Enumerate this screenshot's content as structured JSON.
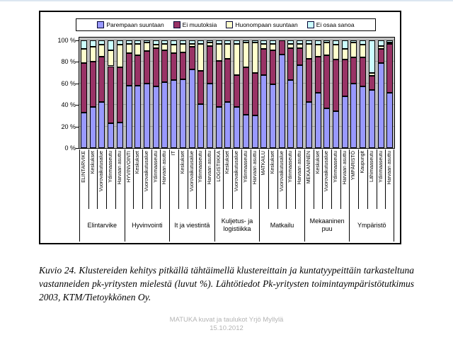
{
  "slide": {
    "caption": "Kuvio 24. Klustereiden kehitys pitkällä tähtäimellä klustereittain ja kuntatyypeittäin tarkasteltuna vastanneiden pk-yritysten mielestä (luvut %). Lähtötiedot Pk-yritysten toimintaympäristötutkimus 2003, KTM/Tietoykkönen Oy.",
    "footer_line1": "MATUKA kuvat ja taulukot Yrjö Myllylä",
    "footer_line2": "15.10.2012"
  },
  "chart_data": {
    "type": "bar",
    "stacked_percent": true,
    "legend_position": "top",
    "grid": true,
    "plot_bg": "#C0C0C0",
    "bar_border": "#000000",
    "ylim": [
      0,
      100
    ],
    "y_ticks": [
      {
        "value": 100,
        "label": "100 %"
      },
      {
        "value": 80,
        "label": "80 %"
      },
      {
        "value": 60,
        "label": "60 %"
      },
      {
        "value": 40,
        "label": "40 %"
      },
      {
        "value": 20,
        "label": "20 %"
      },
      {
        "value": 0,
        "label": "0 %"
      }
    ],
    "legend": [
      {
        "label": "Parempaan suuntaan",
        "color": "#9999FF"
      },
      {
        "label": "Ei muutoksia",
        "color": "#993366"
      },
      {
        "label": "Huonompaan suuntaan",
        "color": "#FFFFCC"
      },
      {
        "label": "Ei osaa sanoa",
        "color": "#CCFFFF"
      }
    ],
    "groups": [
      {
        "label": "Elintarvike",
        "bars": [
          {
            "label": "ELINTARVIKE",
            "values": [
              33,
              46,
              13,
              8
            ]
          },
          {
            "label": "Keskukset",
            "values": [
              38,
              42,
              14,
              6
            ]
          },
          {
            "label": "Vuorovaikutusalue",
            "values": [
              43,
              42,
              11,
              4
            ]
          },
          {
            "label": "Ydinmaaseutu",
            "values": [
              23,
              53,
              15,
              9
            ]
          },
          {
            "label": "Harvaan asuttu",
            "values": [
              24,
              51,
              21,
              4
            ]
          }
        ]
      },
      {
        "label": "Hyvinvointi",
        "bars": [
          {
            "label": "HYVINVOINTI",
            "values": [
              58,
              30,
              9,
              3
            ]
          },
          {
            "label": "Keskukset",
            "values": [
              58,
              28,
              11,
              3
            ]
          },
          {
            "label": "Vuorovaikutusalue",
            "values": [
              60,
              30,
              8,
              2
            ]
          },
          {
            "label": "Ydinmaaseutu",
            "values": [
              57,
              36,
              3,
              4
            ]
          },
          {
            "label": "Harvaan asuttu",
            "values": [
              61,
              30,
              6,
              3
            ]
          }
        ]
      },
      {
        "label": "It ja viestintä",
        "bars": [
          {
            "label": "IT",
            "values": [
              63,
              25,
              8,
              4
            ]
          },
          {
            "label": "Keskukset",
            "values": [
              64,
              25,
              8,
              3
            ]
          },
          {
            "label": "Vuorovaikutusalue",
            "values": [
              73,
              21,
              3,
              3
            ]
          },
          {
            "label": "Ydinmaaseutu",
            "values": [
              41,
              31,
              25,
              3
            ]
          },
          {
            "label": "Harvaan asuttu",
            "values": [
              60,
              35,
              3,
              2
            ]
          }
        ]
      },
      {
        "label": "Kuljetus- ja logistiikka",
        "bars": [
          {
            "label": "LOGISTIIKKA",
            "values": [
              38,
              43,
              16,
              3
            ]
          },
          {
            "label": "Keskukset",
            "values": [
              43,
              40,
              14,
              3
            ]
          },
          {
            "label": "Vuorovaikutusalue",
            "values": [
              38,
              30,
              29,
              3
            ]
          },
          {
            "label": "Ydinmaaseutu",
            "values": [
              31,
              44,
              23,
              2
            ]
          },
          {
            "label": "Harvaan asuttu",
            "values": [
              30,
              40,
              28,
              2
            ]
          }
        ]
      },
      {
        "label": "Matkailu",
        "bars": [
          {
            "label": "MATKAILU",
            "values": [
              68,
              24,
              5,
              3
            ]
          },
          {
            "label": "Keskukset",
            "values": [
              59,
              32,
              6,
              3
            ]
          },
          {
            "label": "Vuorovaikutusalue",
            "values": [
              87,
              13,
              0,
              0
            ]
          },
          {
            "label": "Ydinmaaseutu",
            "values": [
              63,
              30,
              4,
              3
            ]
          },
          {
            "label": "Harvaan asuttu",
            "values": [
              77,
              16,
              4,
              3
            ]
          }
        ]
      },
      {
        "label": "Mekaaninen puu",
        "bars": [
          {
            "label": "MEKAANINEN",
            "values": [
              43,
              40,
              14,
              3
            ]
          },
          {
            "label": "Keskukset",
            "values": [
              51,
              34,
              11,
              4
            ]
          },
          {
            "label": "Vuorovaikutusalue",
            "values": [
              37,
              49,
              12,
              2
            ]
          },
          {
            "label": "Ydinmaaseutu",
            "values": [
              34,
              48,
              14,
              4
            ]
          },
          {
            "label": "Harvaan asuttu",
            "values": [
              48,
              34,
              10,
              8
            ]
          }
        ]
      },
      {
        "label": "Ympäristö",
        "bars": [
          {
            "label": "YMPÄRISTÖ",
            "values": [
              60,
              24,
              14,
              2
            ]
          },
          {
            "label": "Kaupungit",
            "values": [
              57,
              27,
              12,
              4
            ]
          },
          {
            "label": "Lähimaaseutu",
            "values": [
              54,
              13,
              3,
              30
            ]
          },
          {
            "label": "Ydinmaaseutu",
            "values": [
              79,
              13,
              3,
              5
            ]
          },
          {
            "label": "Harvaan asuttu",
            "values": [
              51,
              46,
              1,
              2
            ]
          }
        ]
      }
    ]
  }
}
